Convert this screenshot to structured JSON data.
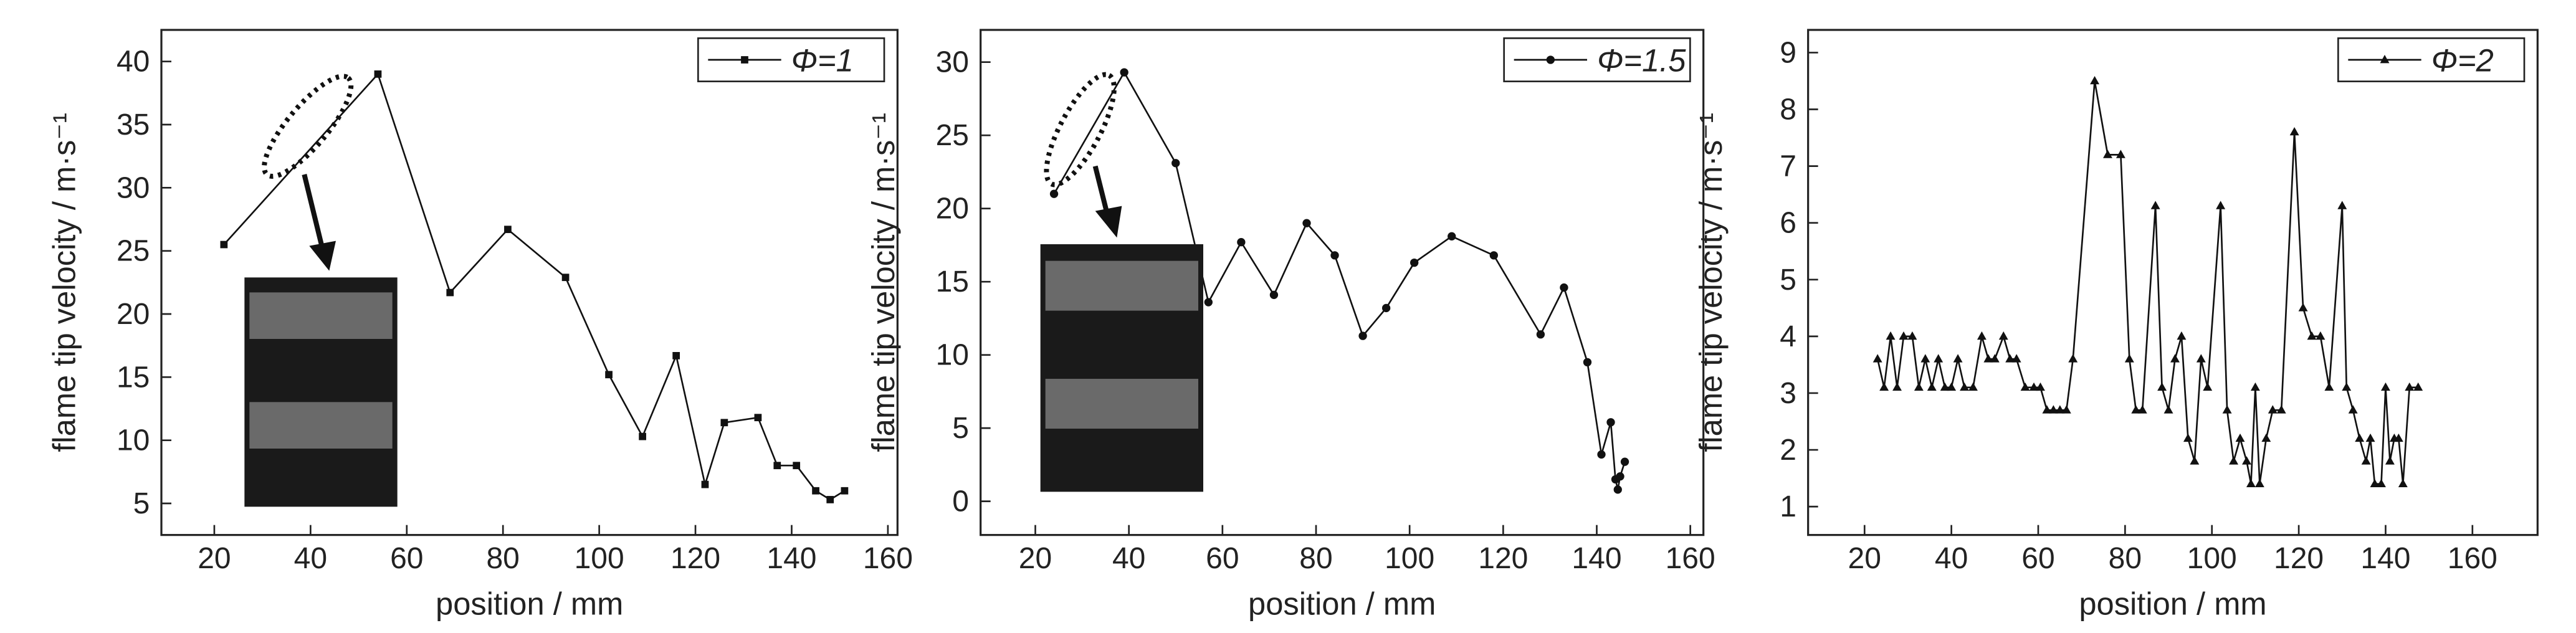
{
  "chart_data": [
    {
      "type": "line",
      "ylabel": "flame tip velocity / m·s⁻¹",
      "xlabel": "position / mm",
      "xlim": [
        9,
        162
      ],
      "ylim": [
        2.5,
        42.5
      ],
      "xticks": [
        20,
        40,
        60,
        80,
        100,
        120,
        140,
        160
      ],
      "yticks": [
        5,
        10,
        15,
        20,
        25,
        30,
        35,
        40
      ],
      "legend": "upper right",
      "series": [
        {
          "name": "Φ=1",
          "color": "#111111",
          "marker": "square",
          "x": [
            22,
            54,
            69,
            81,
            93,
            102,
            109,
            116,
            122,
            126,
            133,
            137,
            141,
            145,
            148,
            151
          ],
          "values": [
            25.5,
            39,
            21.7,
            26.7,
            22.9,
            15.2,
            10.3,
            16.7,
            6.5,
            11.4,
            11.8,
            8,
            8,
            6,
            5.3,
            6
          ]
        }
      ]
    },
    {
      "type": "line",
      "ylabel": "flame tip velocity / m·s⁻¹",
      "xlabel": "position / mm",
      "xlim": [
        8.3,
        162.8
      ],
      "ylim": [
        -2.3,
        32.2
      ],
      "xticks": [
        20,
        40,
        60,
        80,
        100,
        120,
        140,
        160
      ],
      "yticks": [
        0,
        5,
        10,
        15,
        20,
        25,
        30
      ],
      "legend": "upper right",
      "series": [
        {
          "name": "Φ=1.5",
          "color": "#111111",
          "marker": "circle",
          "x": [
            24,
            39,
            50,
            57,
            64,
            71,
            78,
            84,
            90,
            95,
            101,
            109,
            118,
            128,
            133,
            138,
            141,
            143,
            144,
            144.5,
            145,
            146
          ],
          "values": [
            21,
            29.3,
            23.1,
            13.6,
            17.7,
            14.1,
            19,
            16.8,
            11.3,
            13.2,
            16.3,
            18.1,
            16.8,
            11.4,
            14.6,
            9.5,
            3.2,
            5.4,
            1.5,
            0.8,
            1.7,
            2.7
          ]
        }
      ]
    },
    {
      "type": "line",
      "ylabel": "flame tip velocity / m·s⁻¹",
      "xlabel": "position / mm",
      "xlim": [
        7,
        175
      ],
      "ylim": [
        0.5,
        9.4
      ],
      "xticks": [
        20,
        40,
        60,
        80,
        100,
        120,
        140,
        160
      ],
      "yticks": [
        1,
        2,
        3,
        4,
        5,
        6,
        7,
        8,
        9
      ],
      "legend": "upper right",
      "series": [
        {
          "name": "Φ=2",
          "color": "#111111",
          "marker": "triangle",
          "x": [
            23,
            24.5,
            26,
            27.5,
            29,
            31,
            32.5,
            34,
            35.5,
            37,
            38.5,
            40,
            41.5,
            43,
            45,
            47,
            48.5,
            50,
            52,
            53.5,
            55,
            57,
            59,
            60.5,
            62,
            63.5,
            65,
            66.5,
            68,
            73,
            76,
            79,
            81,
            82.5,
            84,
            87,
            88.5,
            90,
            91.5,
            93,
            94.5,
            96,
            97.5,
            99,
            102,
            103.5,
            105,
            106.5,
            108,
            109,
            110,
            111,
            112.5,
            114,
            116,
            119,
            121,
            123,
            125,
            127,
            130,
            131,
            132.5,
            134,
            135.5,
            136.5,
            137.5,
            139,
            140,
            141,
            142,
            143,
            144,
            145.5,
            147.5
          ],
          "values": [
            3.6,
            3.1,
            4,
            3.1,
            4,
            4,
            3.1,
            3.6,
            3.1,
            3.6,
            3.1,
            3.1,
            3.6,
            3.1,
            3.1,
            4,
            3.6,
            3.6,
            4,
            3.6,
            3.6,
            3.1,
            3.1,
            3.1,
            2.7,
            2.7,
            2.7,
            2.7,
            3.6,
            8.5,
            7.2,
            7.2,
            3.6,
            2.7,
            2.7,
            6.3,
            3.1,
            2.7,
            3.6,
            4,
            2.2,
            1.8,
            3.6,
            3.1,
            6.3,
            2.7,
            1.8,
            2.2,
            1.8,
            1.4,
            3.1,
            1.4,
            2.2,
            2.7,
            2.7,
            7.6,
            4.5,
            4,
            4,
            3.1,
            6.3,
            3.1,
            2.7,
            2.2,
            1.8,
            2.2,
            1.4,
            1.4,
            3.1,
            1.8,
            2.2,
            2.2,
            1.4,
            3.1,
            3.1
          ]
        }
      ]
    }
  ]
}
